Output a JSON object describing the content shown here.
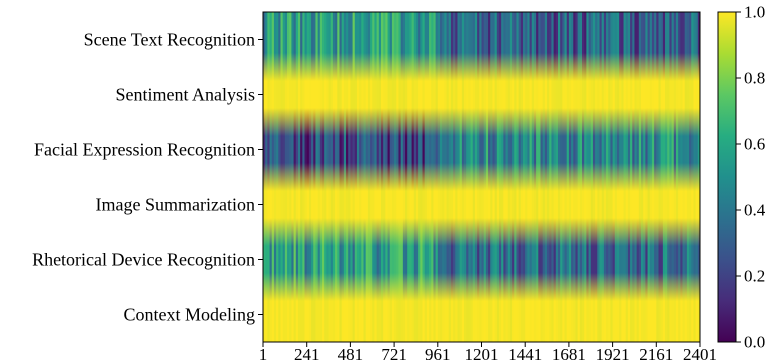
{
  "chart_data": {
    "type": "heatmap",
    "title": "",
    "xlabel": "",
    "ylabel": "",
    "rows": [
      "Scene Text Recognition",
      "Sentiment Analysis",
      "Facial Expression Recognition",
      "Image Summarization",
      "Rhetorical Device Recognition",
      "Context Modeling"
    ],
    "x_range": [
      1,
      2401
    ],
    "x_ticks": [
      "1",
      "241",
      "481",
      "721",
      "961",
      "1201",
      "1441",
      "1681",
      "1921",
      "2161",
      "2401"
    ],
    "colormap": "viridis",
    "colorbar": {
      "range": [
        0.0,
        1.0
      ],
      "ticks": [
        "0.0",
        "0.2",
        "0.4",
        "0.6",
        "0.8",
        "1.0"
      ]
    },
    "row_profiles": [
      {
        "row": "Scene Text Recognition",
        "band_center_value_x1_960": 0.55,
        "band_center_value_x961_2401": 0.3,
        "column_jitter": "high"
      },
      {
        "row": "Sentiment Analysis",
        "band_center_value_x1_960": 0.99,
        "band_center_value_x961_2401": 0.99,
        "column_jitter": "very low"
      },
      {
        "row": "Facial Expression Recognition",
        "band_center_value_x1_960": 0.22,
        "band_center_value_x961_2401": 0.48,
        "column_jitter": "high"
      },
      {
        "row": "Image Summarization",
        "band_center_value_x1_960": 0.99,
        "band_center_value_x961_2401": 0.99,
        "column_jitter": "very low"
      },
      {
        "row": "Rhetorical Device Recognition",
        "band_center_value_x1_960": 0.55,
        "band_center_value_x961_2401": 0.35,
        "column_jitter": "high"
      },
      {
        "row": "Context Modeling",
        "band_center_value_x1_960": 0.99,
        "band_center_value_x961_2401": 0.99,
        "column_jitter": "very low"
      }
    ]
  }
}
